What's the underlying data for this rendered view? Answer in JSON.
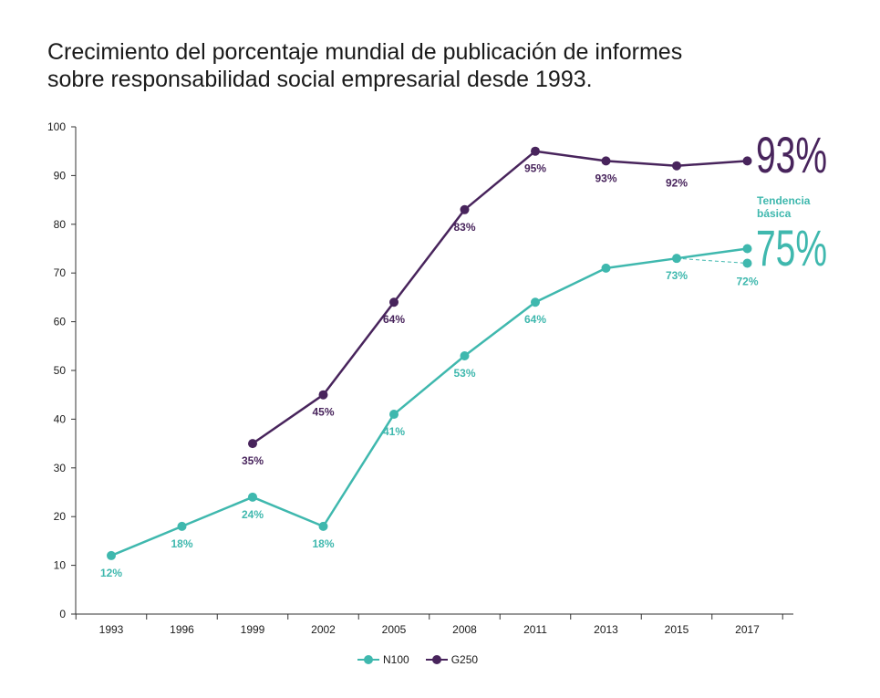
{
  "title_lines": [
    "Crecimiento del porcentaje mundial de publicación de informes",
    "sobre responsabilidad social empresarial desde 1993."
  ],
  "colors": {
    "n100": "#3fb8ae",
    "g250": "#48245c",
    "axis": "#333333"
  },
  "chart_data": {
    "type": "line",
    "categories": [
      "1993",
      "1996",
      "1999",
      "2002",
      "2005",
      "2008",
      "2011",
      "2013",
      "2015",
      "2017"
    ],
    "ylim": [
      0,
      100
    ],
    "yticks": [
      0,
      10,
      20,
      30,
      40,
      50,
      60,
      70,
      80,
      90,
      100
    ],
    "legend_position": "bottom",
    "grid": false,
    "series": [
      {
        "name": "N100",
        "key": "n100",
        "values": [
          12,
          18,
          24,
          18,
          41,
          53,
          64,
          71,
          73,
          75
        ],
        "labels": [
          "12%",
          "18%",
          "24%",
          "18%",
          "41%",
          "53%",
          "64%",
          "",
          "73%",
          ""
        ]
      },
      {
        "name": "G250",
        "key": "g250",
        "values": [
          null,
          null,
          35,
          45,
          64,
          83,
          95,
          93,
          92,
          93
        ],
        "labels": [
          "",
          "",
          "35%",
          "45%",
          "64%",
          "83%",
          "95%",
          "93%",
          "92%",
          ""
        ]
      }
    ],
    "trend": {
      "name": "Tendencia básica",
      "from_category": "2015",
      "from_value": 73,
      "to_category": "2017",
      "to_value": 72,
      "label": "72%"
    },
    "annotations": {
      "g250_final": "93%",
      "n100_final": "75%",
      "trend_title_1": "Tendencia",
      "trend_title_2": "básica"
    }
  }
}
